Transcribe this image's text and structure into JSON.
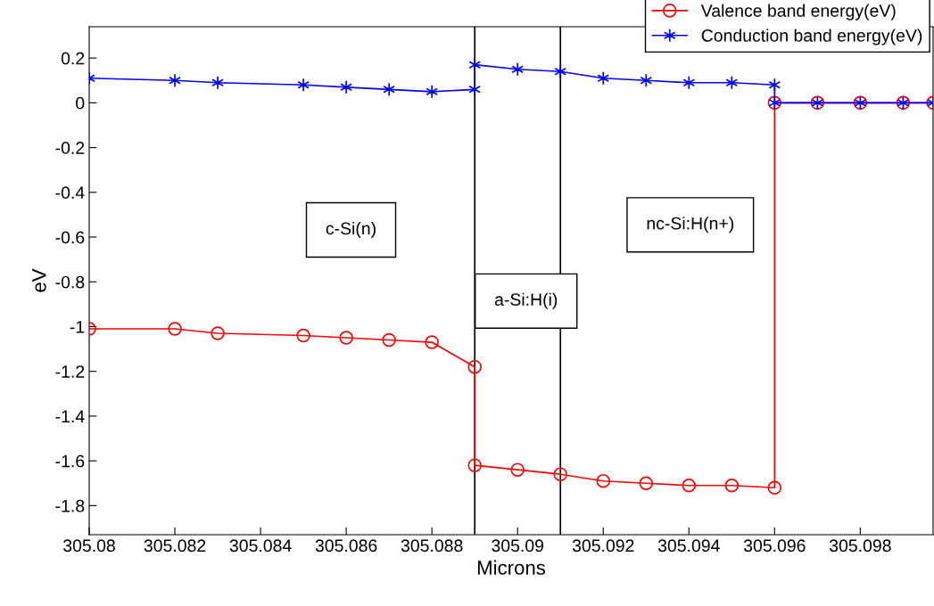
{
  "chart_data": {
    "type": "line",
    "xlabel": "Microns",
    "ylabel": "eV",
    "xlim": [
      305.08,
      305.0997
    ],
    "ylim": [
      -1.93,
      0.34
    ],
    "xticks": [
      305.08,
      305.082,
      305.084,
      305.086,
      305.088,
      305.09,
      305.092,
      305.094,
      305.096,
      305.098
    ],
    "yticks": [
      0.2,
      0,
      -0.2,
      -0.4,
      -0.6,
      -0.8,
      -1,
      -1.2,
      -1.4,
      -1.6,
      -1.8
    ],
    "grid": false,
    "legend": "top right",
    "line_style": "solid",
    "x": [
      305.08,
      305.082,
      305.083,
      305.085,
      305.086,
      305.087,
      305.088,
      305.089,
      305.089,
      305.09,
      305.091,
      305.092,
      305.093,
      305.094,
      305.095,
      305.096,
      305.096,
      305.097,
      305.098,
      305.099,
      305.0997
    ],
    "series": [
      {
        "name": "Valence band energy(eV)",
        "color": "#ff0000",
        "marker": "circle",
        "values": [
          -1.01,
          -1.01,
          -1.03,
          -1.04,
          -1.05,
          -1.06,
          -1.07,
          -1.18,
          -1.62,
          -1.64,
          -1.66,
          -1.69,
          -1.7,
          -1.71,
          -1.71,
          -1.72,
          0,
          0,
          0,
          0,
          0
        ]
      },
      {
        "name": "Conduction band energy(eV)",
        "color": "#0000ff",
        "marker": "cross",
        "values": [
          0.11,
          0.1,
          0.09,
          0.08,
          0.07,
          0.06,
          0.05,
          0.06,
          0.17,
          0.15,
          0.14,
          0.11,
          0.1,
          0.09,
          0.09,
          0.08,
          0,
          0,
          0,
          0,
          0
        ]
      }
    ],
    "ref_lines": [
      {
        "axis": "x",
        "value": 305.089,
        "color": "#000000"
      },
      {
        "axis": "x",
        "value": 305.091,
        "color": "#000000"
      }
    ],
    "annotations": [
      "c-Si(n)",
      "a-Si:H(i)",
      "nc-Si:H(n+)"
    ]
  }
}
